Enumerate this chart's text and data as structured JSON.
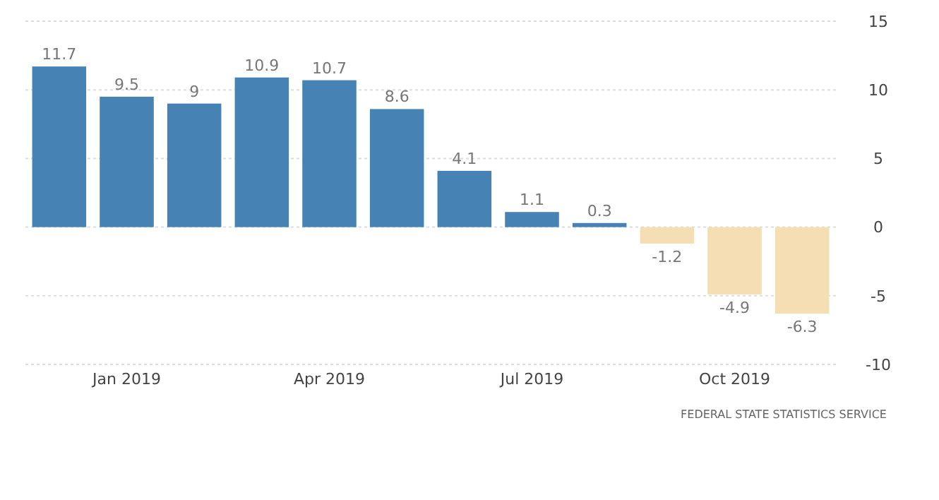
{
  "chart_data": {
    "type": "bar",
    "categories": [
      null,
      "Jan 2019",
      null,
      null,
      "Apr 2019",
      null,
      null,
      "Jul 2019",
      null,
      null,
      "Oct 2019",
      null
    ],
    "values": [
      11.7,
      9.5,
      9,
      10.9,
      10.7,
      8.6,
      4.1,
      1.1,
      0.3,
      -1.2,
      -4.9,
      -6.3
    ],
    "colors": [
      "#4682b4",
      "#4682b4",
      "#4682b4",
      "#4682b4",
      "#4682b4",
      "#4682b4",
      "#4682b4",
      "#4682b4",
      "#4682b4",
      "#f5deb3",
      "#f5deb3",
      "#f5deb3"
    ],
    "ylim": [
      -10,
      15
    ],
    "yticks": [
      -10,
      -5,
      0,
      5,
      10,
      15
    ],
    "grid": "y",
    "data_labels": true,
    "annotations": [
      "FEDERAL STATE STATISTICS SERVICE"
    ]
  }
}
